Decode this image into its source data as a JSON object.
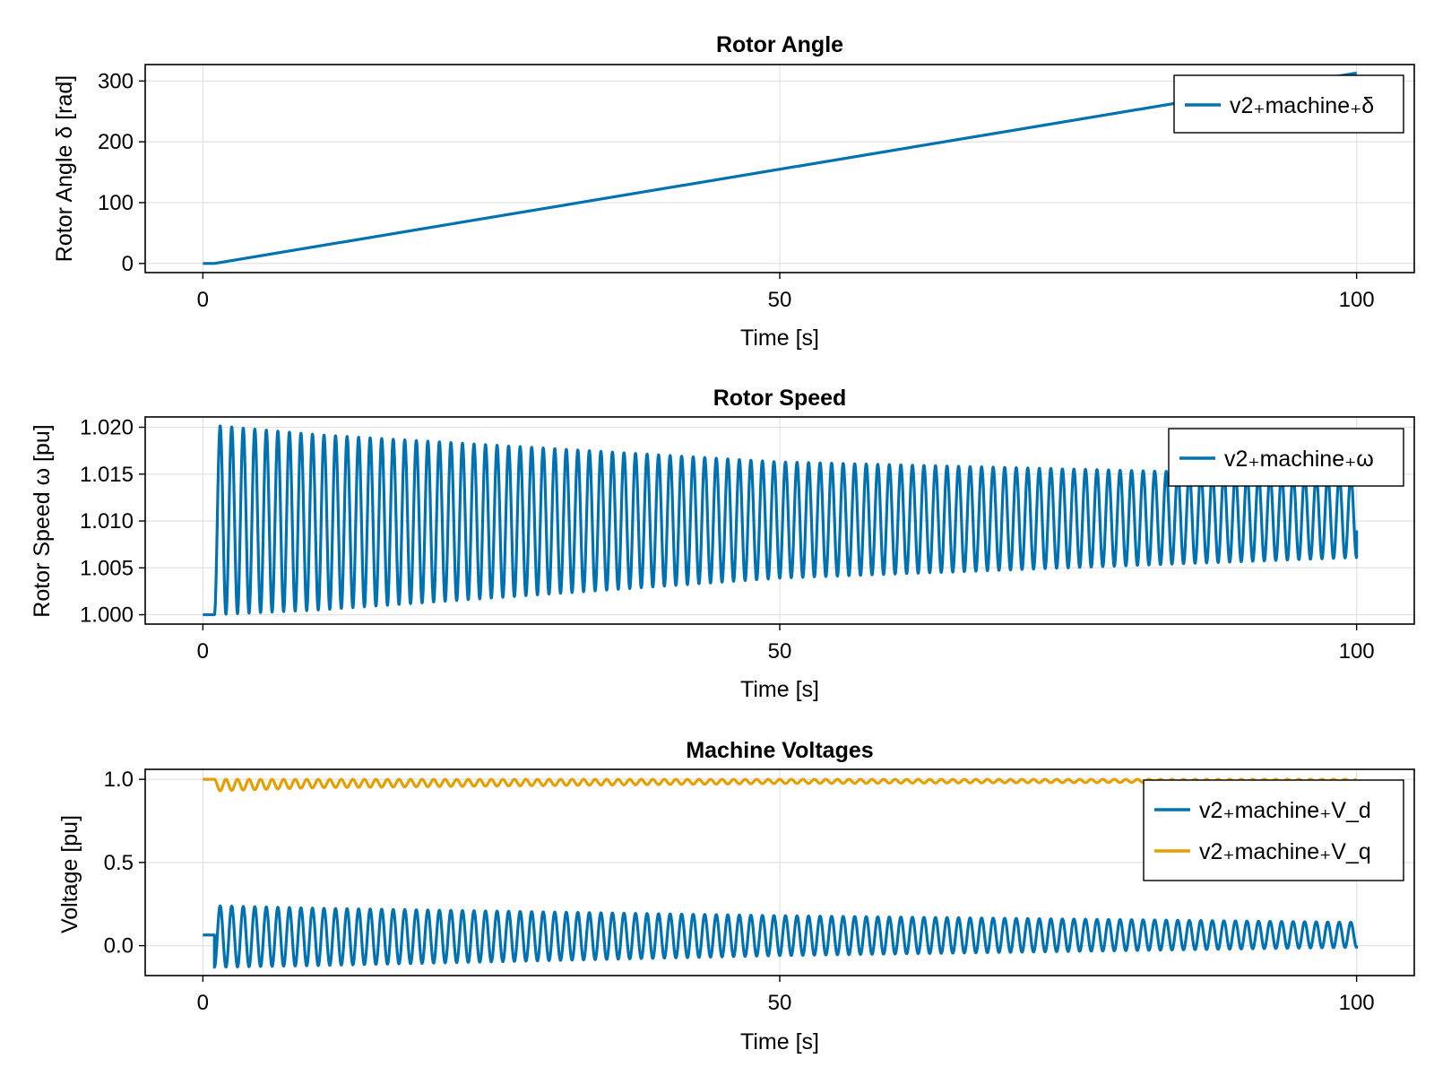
{
  "colors": {
    "blue": "#0072B2",
    "orange": "#E69F00",
    "grid": "#e2e2e2",
    "frame": "#000000"
  },
  "chart_data": [
    {
      "type": "line",
      "title": "Rotor Angle",
      "xlabel": "Time [s]",
      "ylabel": "Rotor Angle δ [rad]",
      "xlim": [
        -5,
        105
      ],
      "ylim": [
        -15,
        327
      ],
      "xticks": [
        0,
        50,
        100
      ],
      "xtick_labels": [
        "0",
        "50",
        "100"
      ],
      "yticks": [
        0,
        100,
        200,
        300
      ],
      "ytick_labels": [
        "0",
        "100",
        "200",
        "300"
      ],
      "grid": true,
      "legend_position": "top-right",
      "series": [
        {
          "name": "v2₊machine₊δ",
          "color": "#0072B2",
          "model": "ramp",
          "x": [
            0,
            1,
            100
          ],
          "y": [
            0,
            0,
            313
          ]
        }
      ]
    },
    {
      "type": "line",
      "title": "Rotor Speed",
      "xlabel": "Time [s]",
      "ylabel": "Rotor Speed ω [pu]",
      "xlim": [
        -5,
        105
      ],
      "ylim": [
        0.999,
        1.0211
      ],
      "xticks": [
        0,
        50,
        100
      ],
      "xtick_labels": [
        "0",
        "50",
        "100"
      ],
      "yticks": [
        1.0,
        1.005,
        1.01,
        1.015,
        1.02
      ],
      "ytick_labels": [
        "1.000",
        "1.005",
        "1.010",
        "1.015",
        "1.020"
      ],
      "grid": true,
      "legend_position": "top-right",
      "series": [
        {
          "name": "v2₊machine₊ω",
          "color": "#0072B2",
          "model": "oscillation",
          "step_time": 1.0,
          "initial": 1.0,
          "cycles": 99,
          "upper_envelope": [
            [
              1,
              1.0202
            ],
            [
              10,
              1.0192
            ],
            [
              50,
              1.0163
            ],
            [
              100,
              1.0148
            ]
          ],
          "lower_envelope": [
            [
              1,
              1.0
            ],
            [
              10,
              1.0005
            ],
            [
              50,
              1.0039
            ],
            [
              100,
              1.0061
            ]
          ],
          "end_value": 1.009
        }
      ]
    },
    {
      "type": "line",
      "title": "Machine Voltages",
      "xlabel": "Time [s]",
      "ylabel": "Voltage [pu]",
      "xlim": [
        -5,
        105
      ],
      "ylim": [
        -0.18,
        1.06
      ],
      "xticks": [
        0,
        50,
        100
      ],
      "xtick_labels": [
        "0",
        "50",
        "100"
      ],
      "yticks": [
        0.0,
        0.5,
        1.0
      ],
      "ytick_labels": [
        "0.0",
        "0.5",
        "1.0"
      ],
      "grid": true,
      "legend_position": "top-right",
      "series": [
        {
          "name": "v2₊machine₊V_d",
          "color": "#0072B2",
          "model": "oscillation",
          "step_time": 1.0,
          "initial": 0.064,
          "cycles": 99,
          "upper_envelope": [
            [
              1,
              0.24
            ],
            [
              10,
              0.225
            ],
            [
              50,
              0.18
            ],
            [
              100,
              0.14
            ]
          ],
          "lower_envelope": [
            [
              1,
              -0.13
            ],
            [
              10,
              -0.12
            ],
            [
              50,
              -0.06
            ],
            [
              100,
              -0.01
            ]
          ],
          "end_value": 0.0
        },
        {
          "name": "v2₊machine₊V_q",
          "color": "#E69F00",
          "model": "oscillation",
          "step_time": 1.0,
          "initial": 1.0,
          "cycles": 99,
          "upper_envelope": [
            [
              1,
              1.0
            ],
            [
              100,
              1.0
            ]
          ],
          "lower_envelope": [
            [
              1,
              0.93
            ],
            [
              10,
              0.95
            ],
            [
              50,
              0.975
            ],
            [
              100,
              0.985
            ]
          ],
          "end_value": 1.0
        }
      ]
    }
  ]
}
